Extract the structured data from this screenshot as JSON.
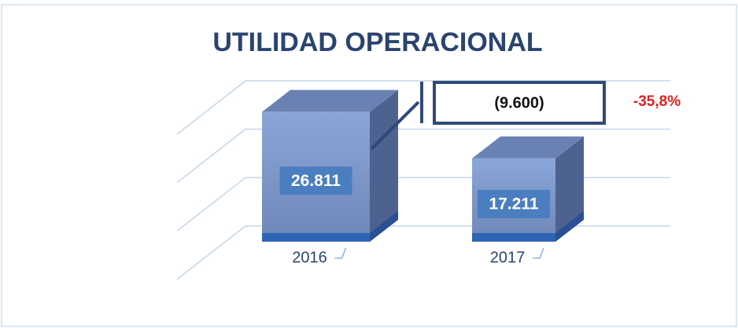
{
  "chart_data": {
    "type": "bar3d",
    "title": "UTILIDAD OPERACIONAL",
    "categories": [
      "2016",
      "2017"
    ],
    "values": [
      26811,
      17211
    ],
    "value_labels": [
      "26.811",
      "17.211"
    ],
    "color": "#7f98c9",
    "ylim": [
      0,
      30000
    ],
    "yticks": [
      0,
      10000,
      20000,
      30000
    ],
    "grid": true,
    "annotations": [
      "(9.600)",
      "-35,8%"
    ]
  }
}
